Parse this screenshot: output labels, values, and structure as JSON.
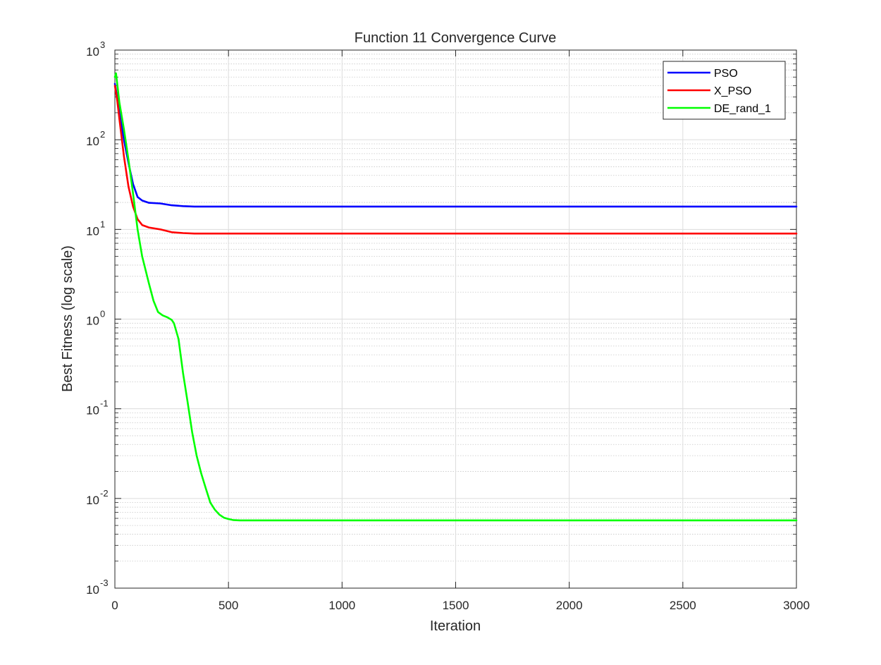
{
  "chart_data": {
    "type": "line",
    "title": "Function 11 Convergence Curve",
    "xlabel": "Iteration",
    "ylabel": "Best Fitness (log scale)",
    "xlim": [
      0,
      3000
    ],
    "ylim": [
      0.001,
      1000
    ],
    "y_scale": "log",
    "grid": true,
    "legend_position": "top-right",
    "x_ticks": [
      0,
      500,
      1000,
      1500,
      2000,
      2500,
      3000
    ],
    "x_tick_labels": [
      "0",
      "500",
      "1000",
      "1500",
      "2000",
      "2500",
      "3000"
    ],
    "y_ticks": [
      {
        "value": 0.001,
        "base": "10",
        "exp": "-3"
      },
      {
        "value": 0.01,
        "base": "10",
        "exp": "-2"
      },
      {
        "value": 0.1,
        "base": "10",
        "exp": "-1"
      },
      {
        "value": 1,
        "base": "10",
        "exp": "0"
      },
      {
        "value": 10,
        "base": "10",
        "exp": "1"
      },
      {
        "value": 100,
        "base": "10",
        "exp": "2"
      },
      {
        "value": 1000,
        "base": "10",
        "exp": "3"
      }
    ],
    "series": [
      {
        "name": "PSO",
        "color": "#0000ff",
        "x": [
          0,
          10,
          20,
          40,
          60,
          80,
          100,
          120,
          150,
          200,
          250,
          300,
          350,
          400,
          500,
          1000,
          1500,
          2000,
          2500,
          3000
        ],
        "y": [
          420,
          300,
          200,
          100,
          55,
          32,
          23,
          21,
          19.8,
          19.5,
          18.6,
          18.2,
          18,
          18,
          18,
          18,
          18,
          18,
          18,
          18
        ]
      },
      {
        "name": "X_PSO",
        "color": "#ff0000",
        "x": [
          0,
          10,
          20,
          40,
          60,
          80,
          100,
          120,
          150,
          200,
          250,
          300,
          350,
          400,
          500,
          1000,
          1500,
          2000,
          2500,
          3000
        ],
        "y": [
          400,
          280,
          170,
          65,
          30,
          18,
          13,
          11.2,
          10.5,
          10,
          9.3,
          9.1,
          9,
          9,
          9,
          9,
          9,
          9,
          9,
          9
        ]
      },
      {
        "name": "DE_rand_1",
        "color": "#00ff00",
        "x": [
          0,
          5,
          20,
          40,
          60,
          80,
          100,
          120,
          150,
          170,
          190,
          210,
          230,
          250,
          260,
          280,
          300,
          320,
          340,
          360,
          380,
          400,
          420,
          440,
          460,
          480,
          500,
          520,
          550,
          580,
          600,
          700,
          1000,
          1500,
          2000,
          2500,
          3000
        ],
        "y": [
          500,
          550,
          260,
          130,
          60,
          25,
          10,
          5,
          2.5,
          1.6,
          1.2,
          1.1,
          1.05,
          0.98,
          0.9,
          0.6,
          0.25,
          0.12,
          0.055,
          0.03,
          0.019,
          0.013,
          0.009,
          0.0075,
          0.0066,
          0.0061,
          0.0059,
          0.00575,
          0.0057,
          0.0057,
          0.0057,
          0.0057,
          0.0057,
          0.0057,
          0.0057,
          0.0057,
          0.0057
        ]
      }
    ]
  }
}
